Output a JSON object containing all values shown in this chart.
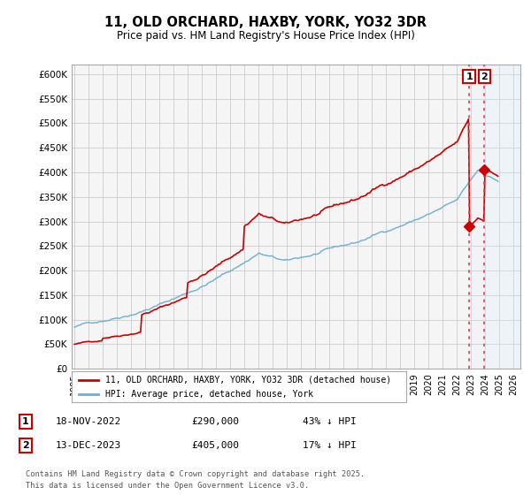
{
  "title": "11, OLD ORCHARD, HAXBY, YORK, YO32 3DR",
  "subtitle": "Price paid vs. HM Land Registry's House Price Index (HPI)",
  "ylabel_ticks": [
    "£0",
    "£50K",
    "£100K",
    "£150K",
    "£200K",
    "£250K",
    "£300K",
    "£350K",
    "£400K",
    "£450K",
    "£500K",
    "£550K",
    "£600K"
  ],
  "ytick_values": [
    0,
    50000,
    100000,
    150000,
    200000,
    250000,
    300000,
    350000,
    400000,
    450000,
    500000,
    550000,
    600000
  ],
  "ylim": [
    0,
    620000
  ],
  "xlim_start": 1994.8,
  "xlim_end": 2026.5,
  "hpi_color": "#6ab0d4",
  "price_color": "#cc0000",
  "vline_color": "#dd4444",
  "shade_color": "#ddeeff",
  "legend_house_label": "11, OLD ORCHARD, HAXBY, YORK, YO32 3DR (detached house)",
  "legend_hpi_label": "HPI: Average price, detached house, York",
  "transaction1_date": "18-NOV-2022",
  "transaction1_price": "£290,000",
  "transaction1_pct": "43% ↓ HPI",
  "transaction2_date": "13-DEC-2023",
  "transaction2_price": "£405,000",
  "transaction2_pct": "17% ↓ HPI",
  "footer": "Contains HM Land Registry data © Crown copyright and database right 2025.\nThis data is licensed under the Open Government Licence v3.0.",
  "transaction1_x": 2022.88,
  "transaction2_x": 2023.96,
  "background_color": "#ffffff",
  "grid_color": "#cccccc",
  "plot_bg_color": "#f5f5f5"
}
